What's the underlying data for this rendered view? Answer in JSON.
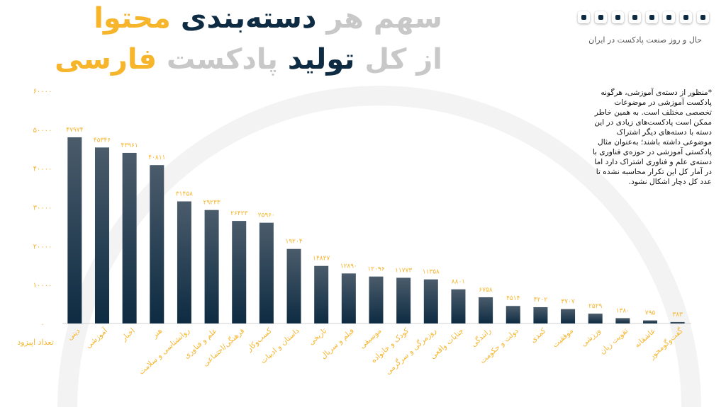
{
  "chart_data": {
    "type": "bar",
    "title": [
      [
        "سهم هر",
        "دسته‌بندی",
        "محتوا"
      ],
      [
        "از کل",
        "تولید",
        "پادکست",
        "فارسی"
      ]
    ],
    "subtitle": "حال و روز صنعت پادکست در ایران",
    "ylabel": "تعداد اپیزود",
    "note": "*منظور از دسته‌ی آموزشی، هرگونه پادکست آموزشی در موضوعات تخصصی مختلف است. به همین خاطر ممکن است پادکست‌های زیادی در این دسته با دسته‌های دیگر اشتراک موضوعی داشته باشند؛ به‌عنوان مثال پادکستی آموزشی در حوزه‌ی فناوری با دسته‌ی علم و فناوری اشتراک دارد اما در آمار کل این تکرار محاسبه نشده تا عدد کل دچار اشکال نشود.",
    "categories": [
      "دینی",
      "آموزشی",
      "اخبار",
      "هنر",
      "روانشناسی و سلامت",
      "علم و فناوری",
      "فرهنگی/اجتماعی",
      "کسب‌وکار",
      "داستان و ادبیات",
      "تاریخی",
      "فیلم و سریال",
      "موسیقی",
      "کودک و خانواده",
      "روزمرگی و سرگرمی",
      "جنایات واقعی",
      "رانندگی",
      "دولت و حکومت",
      "کمدی",
      "موفقیت",
      "ورزشی",
      "تقویت زبان",
      "عاشقانه",
      "گفت‌وگومحور"
    ],
    "values": [
      47974,
      45346,
      43961,
      40811,
      31458,
      29233,
      26423,
      25960,
      19204,
      14827,
      12890,
      12096,
      11773,
      11358,
      8801,
      6758,
      4514,
      4202,
      3707,
      2529,
      1380,
      795,
      383
    ],
    "value_labels": [
      "۴۷۹۷۴",
      "۴۵۳۴۶",
      "۴۳۹۶۱",
      "۴۰۸۱۱",
      "۳۱۴۵۸",
      "۲۹۲۳۳",
      "۲۶۴۲۳",
      "۲۵۹۶۰",
      "۱۹۲۰۴",
      "۱۴۸۲۷",
      "۱۲۸۹۰",
      "۱۲۰۹۶",
      "۱۱۷۷۳",
      "۱۱۳۵۸",
      "۸۸۰۱",
      "۶۷۵۸",
      "۴۵۱۴",
      "۴۲۰۲",
      "۳۷۰۷",
      "۲۵۲۹",
      "۱۳۸۰",
      "۷۹۵",
      "۳۸۳"
    ],
    "color": "#0d2b42",
    "ylim": [
      0,
      60000
    ],
    "yticks": [
      {
        "value": 0,
        "label": "۰"
      },
      {
        "value": 10000,
        "label": "۱۰۰۰۰"
      },
      {
        "value": 20000,
        "label": "۲۰۰۰۰"
      },
      {
        "value": 30000,
        "label": "۳۰۰۰۰"
      },
      {
        "value": 40000,
        "label": "۴۰۰۰۰"
      },
      {
        "value": 50000,
        "label": "۵۰۰۰۰"
      },
      {
        "value": 60000,
        "label": "۶۰۰۰۰"
      }
    ],
    "grid": false
  }
}
